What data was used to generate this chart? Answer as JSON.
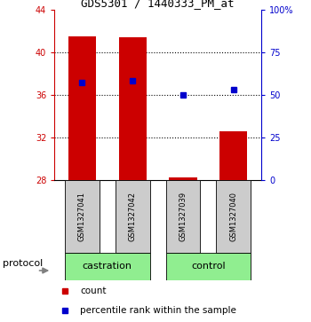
{
  "title": "GDS5301 / 1440333_PM_at",
  "samples": [
    "GSM1327041",
    "GSM1327042",
    "GSM1327039",
    "GSM1327040"
  ],
  "count_values": [
    41.5,
    41.4,
    28.25,
    32.6
  ],
  "percentile_values": [
    37.2,
    37.3,
    36.0,
    36.5
  ],
  "bar_bottom": 28,
  "ylim_left": [
    28,
    44
  ],
  "ylim_right": [
    0,
    100
  ],
  "yticks_left": [
    28,
    32,
    36,
    40,
    44
  ],
  "yticks_right": [
    0,
    25,
    50,
    75,
    100
  ],
  "ytick_labels_right": [
    "0",
    "25",
    "50",
    "75",
    "100%"
  ],
  "left_color": "#cc0000",
  "right_color": "#0000cc",
  "bar_color": "#cc0000",
  "square_color": "#0000cc",
  "group_labels": [
    "castration",
    "control"
  ],
  "group_bg": "#90EE90",
  "sample_bg": "#cccccc",
  "protocol_label": "protocol",
  "legend_count": "count",
  "legend_percentile": "percentile rank within the sample",
  "bar_width": 0.55,
  "x_positions": [
    0,
    1,
    2,
    3
  ],
  "xlim": [
    -0.55,
    3.55
  ],
  "grid_lines": [
    32,
    36,
    40
  ],
  "title_fontsize": 9,
  "tick_fontsize": 7,
  "sample_fontsize": 6,
  "group_fontsize": 8,
  "legend_fontsize": 7.5,
  "protocol_fontsize": 8
}
